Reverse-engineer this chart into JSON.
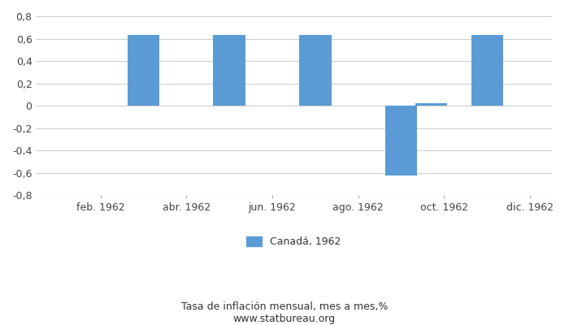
{
  "bar_values": [
    0.63,
    0.63,
    0.63,
    -0.62,
    0.02,
    0.63
  ],
  "bar_months": [
    3,
    5,
    7,
    9,
    9.7,
    11
  ],
  "bar_color": "#5b9bd5",
  "ylim": [
    -0.8,
    0.8
  ],
  "yticks": [
    -0.8,
    -0.6,
    -0.4,
    -0.2,
    0,
    0.2,
    0.4,
    0.6,
    0.8
  ],
  "xlim": [
    0.5,
    12.5
  ],
  "xtick_positions": [
    2,
    4,
    6,
    8,
    10,
    12
  ],
  "xtick_labels": [
    "feb. 1962",
    "abr. 1962",
    "jun. 1962",
    "ago. 1962",
    "oct. 1962",
    "dic. 1962"
  ],
  "title": "Tasa de inflación mensual, mes a mes,%",
  "subtitle": "www.statbureau.org",
  "legend_label": "Canadá, 1962",
  "grid_color": "#d0d0d0",
  "background_color": "#ffffff",
  "bar_width": 0.75,
  "tick_label_color": "#444444",
  "tick_label_fontsize": 9
}
